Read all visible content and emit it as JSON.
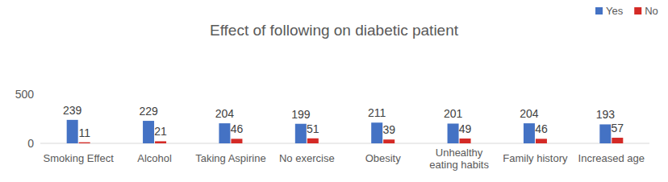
{
  "chart_data": {
    "type": "bar",
    "title": "Effect of following on diabetic patient",
    "categories": [
      "Smoking Effect",
      "Alcohol",
      "Taking Aspirine",
      "No exercise",
      "Obesity",
      "Unhealthy eating habits",
      "Family history",
      "Increased age"
    ],
    "series": [
      {
        "name": "Yes",
        "color": "#4472c4",
        "values": [
          239,
          229,
          204,
          199,
          211,
          201,
          204,
          193
        ]
      },
      {
        "name": "No",
        "color": "#d42a26",
        "values": [
          11,
          21,
          46,
          51,
          39,
          49,
          46,
          57
        ]
      }
    ],
    "ylim": [
      0,
      500
    ],
    "yticks": [
      0,
      500
    ],
    "grid": false,
    "legend": "top-right",
    "data_labels": true
  }
}
